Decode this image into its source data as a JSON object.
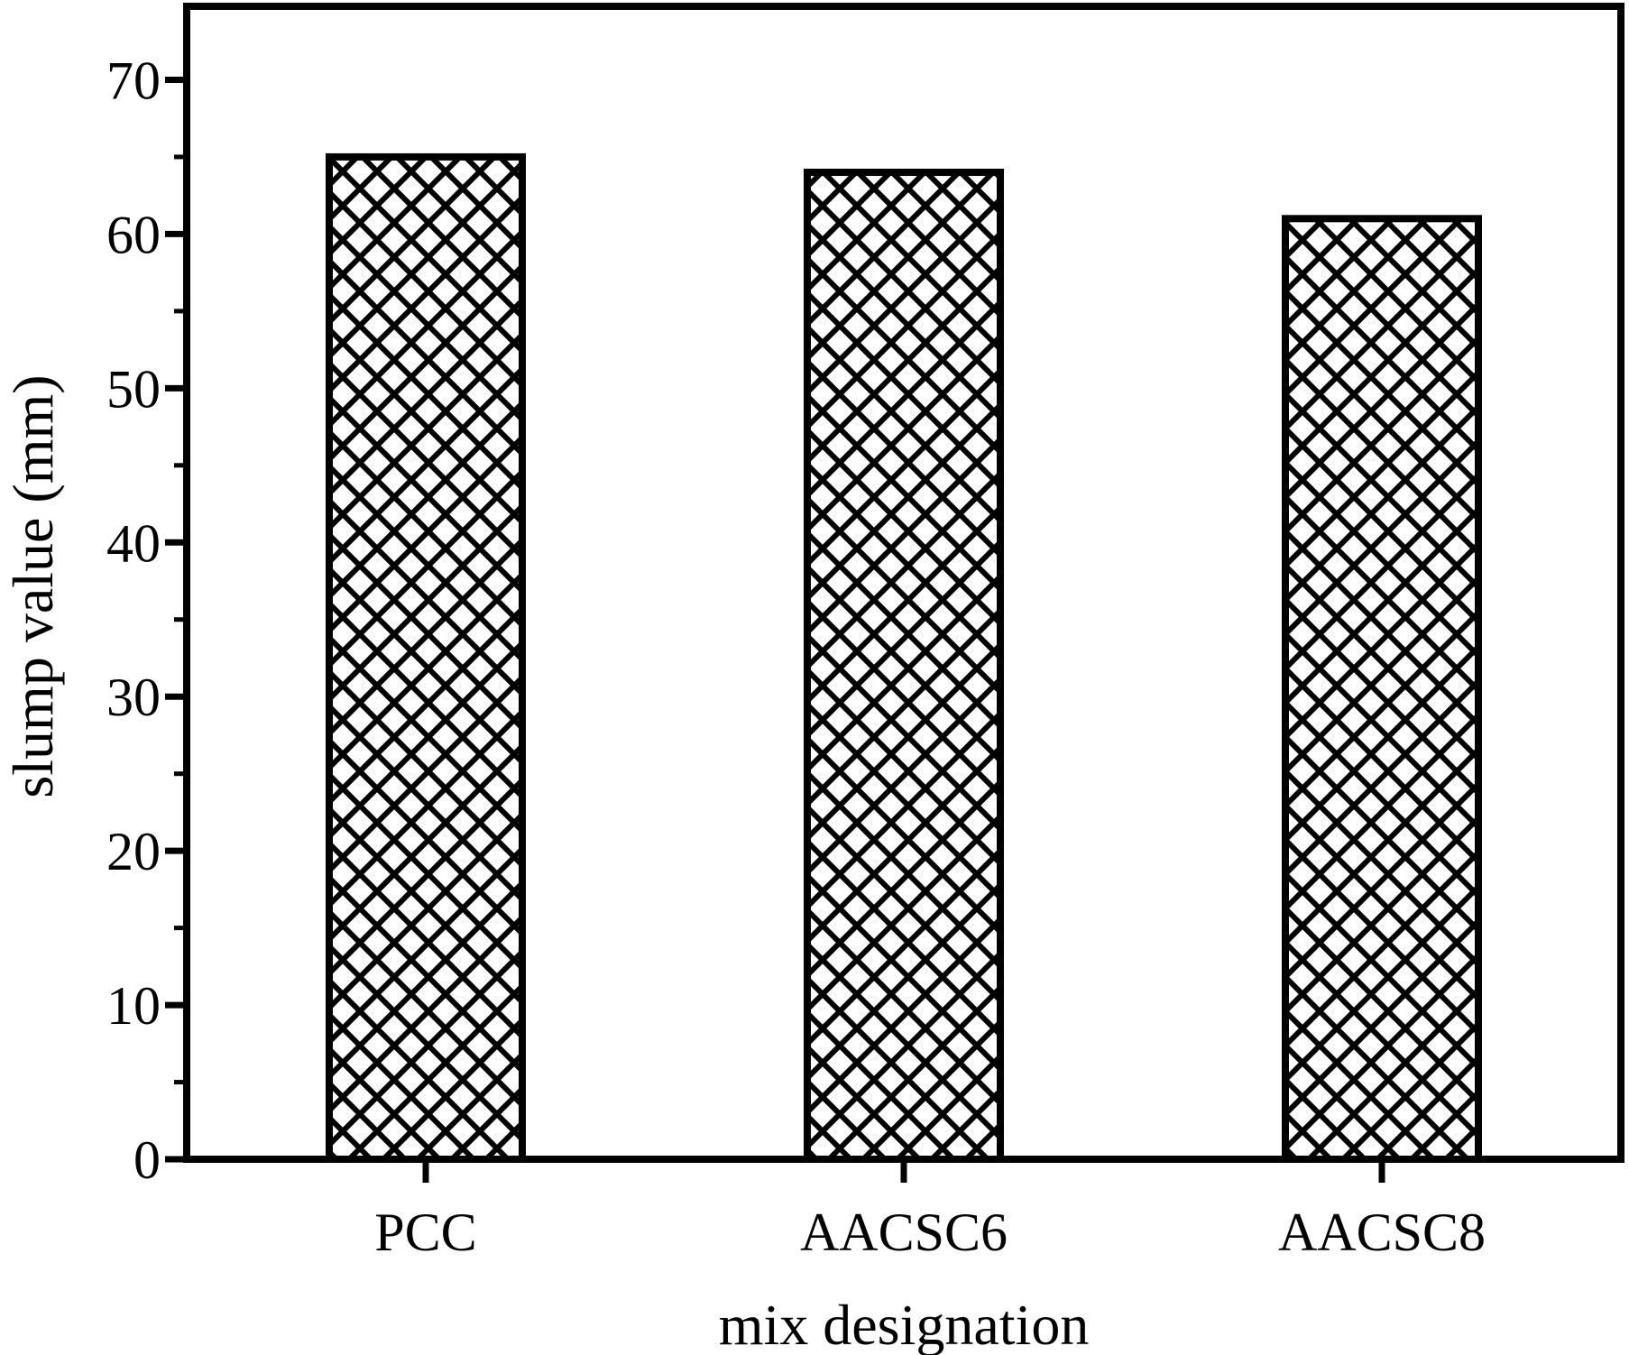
{
  "chart_data": {
    "type": "bar",
    "title": "",
    "categories": [
      "PCC",
      "AACSC6",
      "AACSC8"
    ],
    "values": [
      65,
      64,
      61
    ],
    "xlabel": "mix designation",
    "ylabel": "slump value (mm)",
    "ylim": [
      0,
      75
    ],
    "yticks": [
      0,
      10,
      20,
      30,
      40,
      50,
      60,
      70
    ],
    "minor_tick_interval": 5,
    "grid": false,
    "legend": false,
    "bar_fill_pattern": "diagonal-crosshatch",
    "ink_color": "#000000",
    "background_color": "#ffffff"
  }
}
